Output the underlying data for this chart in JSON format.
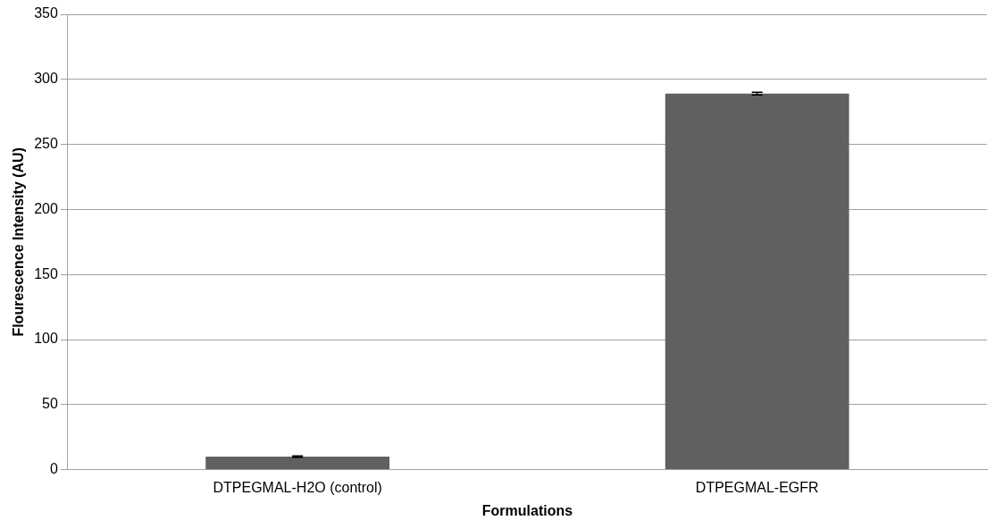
{
  "chart_data": {
    "type": "bar",
    "xlabel": "Formulations",
    "ylabel": "Flourescence Intensity (AU)",
    "categories": [
      "DTPEGMAL-H2O (control)",
      "DTPEGMAL-EGFR"
    ],
    "values": [
      10,
      289
    ],
    "errors": [
      0.5,
      1
    ],
    "color": "#606060",
    "ylim": [
      0,
      350
    ],
    "yticks": [
      0,
      50,
      100,
      150,
      200,
      250,
      300,
      350
    ],
    "grid": "y",
    "legend": false
  }
}
